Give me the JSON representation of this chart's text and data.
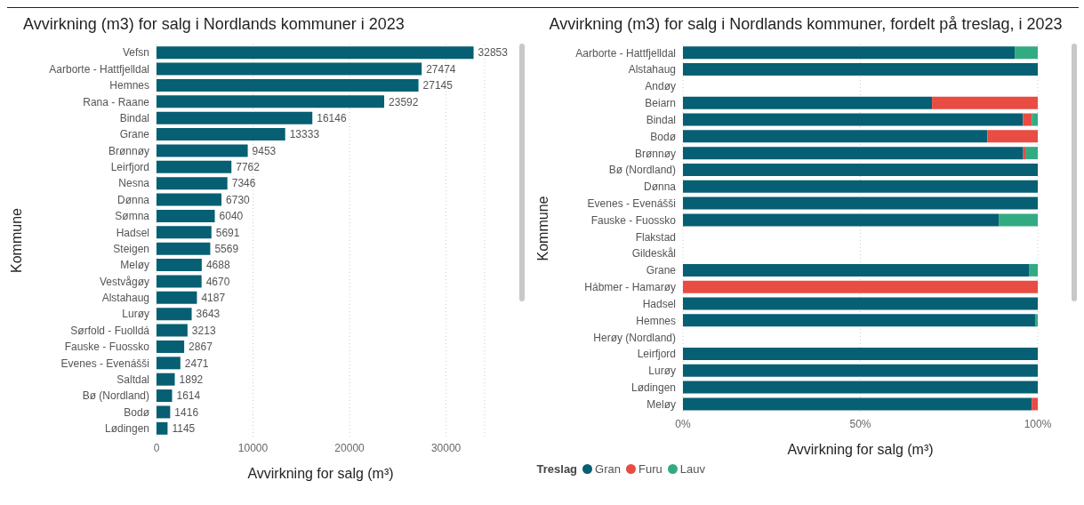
{
  "chart_data": [
    {
      "type": "bar",
      "orientation": "horizontal",
      "title": "Avvirkning (m3) for salg i Nordlands kommuner i 2023",
      "xlabel": "Avvirkning for salg (m³)",
      "ylabel": "Kommune",
      "categories": [
        "Vefsn",
        "Aarborte - Hattfjelldal",
        "Hemnes",
        "Rana - Raane",
        "Bindal",
        "Grane",
        "Brønnøy",
        "Leirfjord",
        "Nesna",
        "Dønna",
        "Sømna",
        "Hadsel",
        "Steigen",
        "Meløy",
        "Vestvågøy",
        "Alstahaug",
        "Lurøy",
        "Sørfold - Fuolldá",
        "Fauske - Fuossko",
        "Evenes - Evenášši",
        "Saltdal",
        "Bø (Nordland)",
        "Bodø",
        "Lødingen"
      ],
      "values": [
        32853,
        27474,
        27145,
        23592,
        16146,
        13333,
        9453,
        7762,
        7346,
        6730,
        6040,
        5691,
        5569,
        4688,
        4670,
        4187,
        3643,
        3213,
        2867,
        2471,
        1892,
        1614,
        1416,
        1145
      ],
      "color": "#065f73",
      "xlim": [
        0,
        34000
      ],
      "xticks": [
        0,
        10000,
        20000,
        30000
      ],
      "grid": "x",
      "data_labels": true
    },
    {
      "type": "bar",
      "orientation": "horizontal",
      "stacked": true,
      "title": "Avvirkning (m3) for salg i Nordlands kommuner, fordelt på treslag, i 2023",
      "xlabel": "Avvirkning for salg (m³)",
      "ylabel": "Kommune",
      "categories": [
        "Aarborte - Hattfjelldal",
        "Alstahaug",
        "Andøy",
        "Beiarn",
        "Bindal",
        "Bodø",
        "Brønnøy",
        "Bø (Nordland)",
        "Dønna",
        "Evenes - Evenášši",
        "Fauske - Fuossko",
        "Flakstad",
        "Gildeskål",
        "Grane",
        "Hábmer - Hamarøy",
        "Hadsel",
        "Hemnes",
        "Herøy (Nordland)",
        "Leirfjord",
        "Lurøy",
        "Lødingen",
        "Meløy"
      ],
      "series": [
        {
          "name": "Gran",
          "color": "#065f73",
          "values": [
            93.5,
            100,
            null,
            70.2,
            95.8,
            85.8,
            95.9,
            100,
            100,
            100,
            89.0,
            null,
            null,
            97.5,
            null,
            100,
            99.4,
            null,
            100,
            100,
            100,
            98.3
          ]
        },
        {
          "name": "Furu",
          "color": "#e84c43",
          "values": [
            null,
            null,
            null,
            29.8,
            2.5,
            14.2,
            0.6,
            null,
            null,
            null,
            null,
            null,
            null,
            null,
            100,
            null,
            null,
            null,
            null,
            null,
            null,
            1.7
          ]
        },
        {
          "name": "Lauv",
          "color": "#33ab82",
          "values": [
            6.5,
            null,
            null,
            null,
            1.7,
            null,
            3.5,
            null,
            null,
            null,
            11.0,
            null,
            null,
            2.5,
            null,
            null,
            0.6,
            null,
            null,
            null,
            null,
            null
          ]
        }
      ],
      "xlim": [
        0,
        100
      ],
      "xticks": [
        {
          "value": 0,
          "label": "0%"
        },
        {
          "value": 50,
          "label": "50%"
        },
        {
          "value": 100,
          "label": "100%"
        }
      ],
      "grid": "x",
      "legend": "bottom left",
      "legend_title": "Treslag"
    }
  ]
}
